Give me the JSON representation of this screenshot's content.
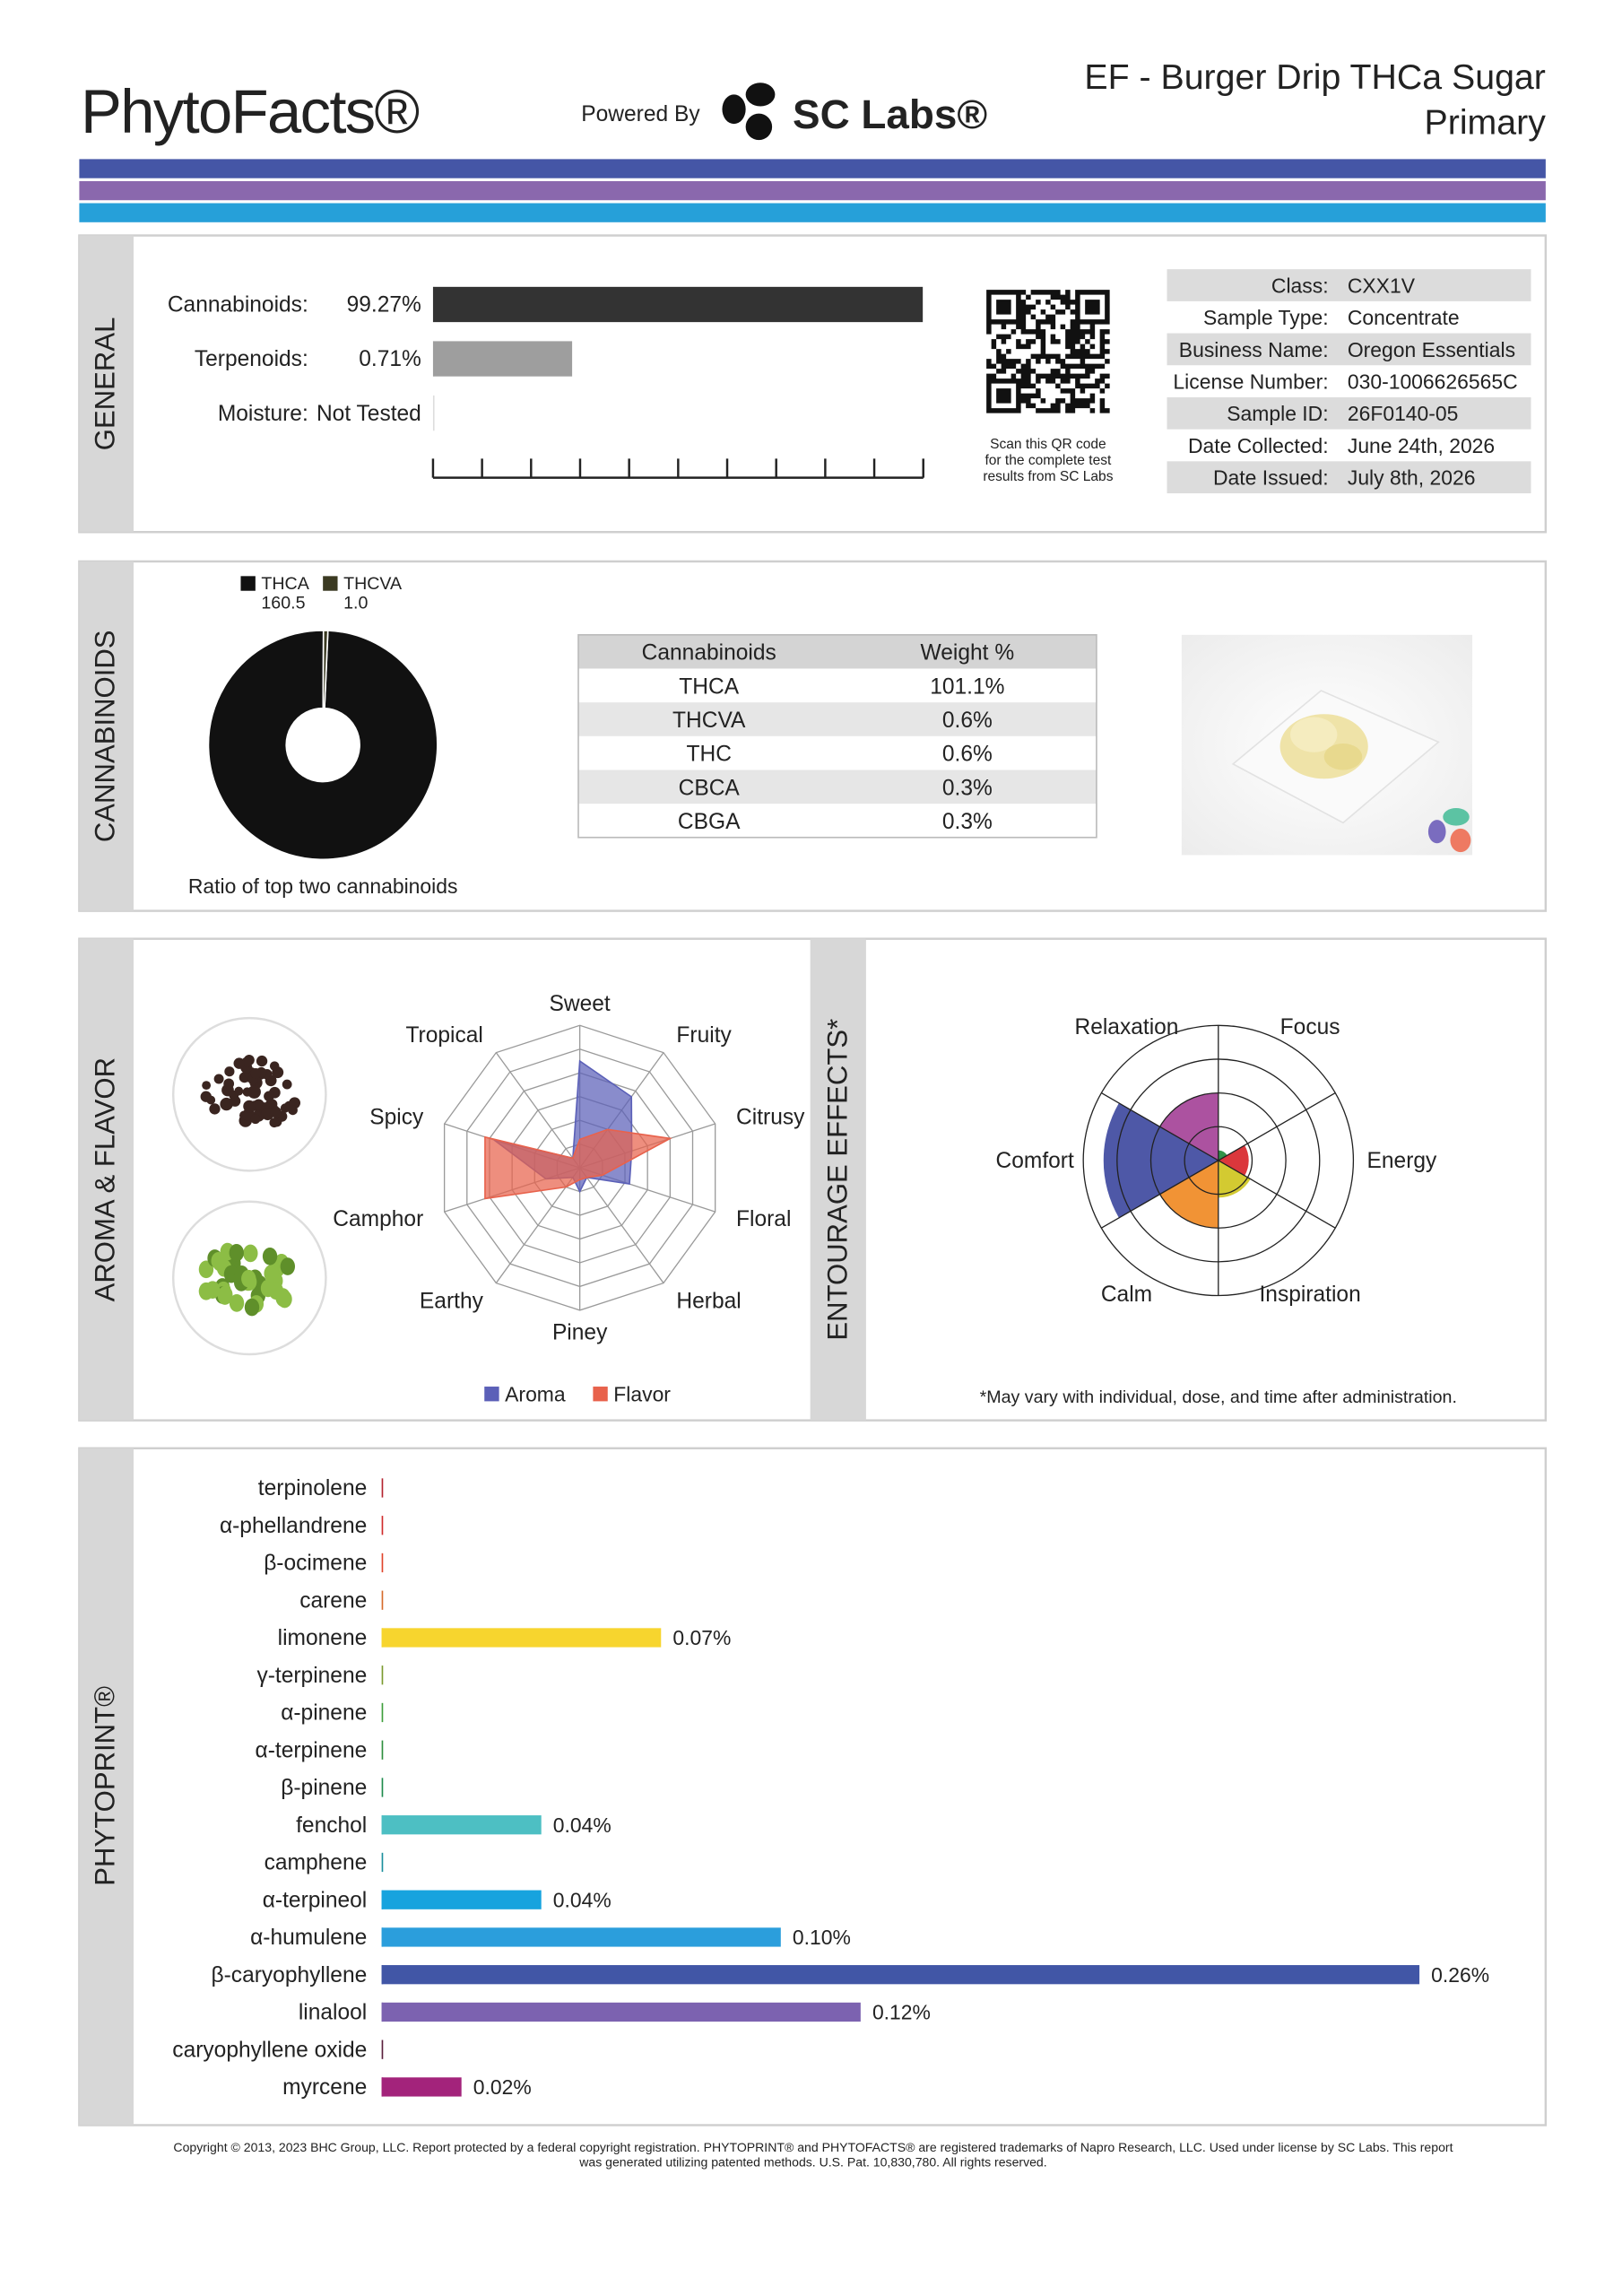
{
  "header": {
    "brand": "PhytoFacts®",
    "powered_by": "Powered By",
    "lab": "SC Labs®",
    "title": "EF - Burger Drip THCa Sugar",
    "subtitle": "Primary"
  },
  "general": {
    "label": "GENERAL",
    "log_scale": true,
    "xlim": [
      0.1,
      100
    ],
    "bars": [
      {
        "name": "Cannabinoids:",
        "value": 99.27,
        "value_label": "99.27%",
        "color": "#333333"
      },
      {
        "name": "Terpenoids:",
        "value": 0.71,
        "value_label": "0.71%",
        "color": "#9e9e9e"
      },
      {
        "name": "Moisture:",
        "value": null,
        "value_label": "Not Tested"
      }
    ],
    "qr_caption": [
      "Scan this QR code",
      "for the complete test",
      "results from SC Labs"
    ],
    "info": [
      [
        "Class:",
        "CXX1V"
      ],
      [
        "Sample Type:",
        "Concentrate"
      ],
      [
        "Business Name:",
        "Oregon Essentials"
      ],
      [
        "License Number:",
        "030-1006626565C"
      ],
      [
        "Sample ID:",
        "26F0140-05"
      ],
      [
        "Date Collected:",
        "June 24th, 2026"
      ],
      [
        "Date Issued:",
        "July 8th, 2026"
      ]
    ]
  },
  "cannabinoids": {
    "label": "CANNABINOIDS",
    "pie": {
      "type": "pie",
      "series": [
        {
          "name": "THCA",
          "value": 160.5,
          "color": "#111111"
        },
        {
          "name": "THCVA",
          "value": 1.0,
          "value_label": "1.0",
          "color": "#3b3a22"
        }
      ],
      "caption": "Ratio of top two cannabinoids"
    },
    "table": {
      "header": [
        "Cannabinoids",
        "Weight %"
      ],
      "rows": [
        [
          "THCA",
          "101.1%"
        ],
        [
          "THCVA",
          "0.6%"
        ],
        [
          "THC",
          "0.6%"
        ],
        [
          "CBCA",
          "0.3%"
        ],
        [
          "CBGA",
          "0.3%"
        ]
      ]
    }
  },
  "aroma_flavor": {
    "label": "AROMA & FLAVOR",
    "radar": {
      "type": "radar",
      "axes": [
        "Sweet",
        "Fruity",
        "Citrusy",
        "Floral",
        "Herbal",
        "Piney",
        "Earthy",
        "Camphor",
        "Spicy",
        "Tropical"
      ],
      "rlim": [
        0,
        6
      ],
      "rticks": [
        1,
        2,
        3,
        4,
        5,
        6
      ],
      "series": [
        {
          "name": "Aroma",
          "color": "#5b60b8",
          "values": [
            4.5,
            3.7,
            2.3,
            2.2,
            0.5,
            1,
            0.5,
            1.5,
            3.8,
            0.5
          ]
        },
        {
          "name": "Flavor",
          "color": "#e8624c",
          "values": [
            1.2,
            2,
            4,
            1,
            0.5,
            0.5,
            1,
            4.2,
            4.2,
            0.5
          ]
        }
      ]
    }
  },
  "entourage": {
    "label": "ENTOURAGE EFFECTS*",
    "type": "polar_area",
    "rlim": [
      0,
      4
    ],
    "rticks": [
      1,
      2,
      3,
      4
    ],
    "categories": [
      "Focus",
      "Energy",
      "Inspiration",
      "Calm",
      "Comfort",
      "Relaxation"
    ],
    "colors": [
      "#1f8a3a",
      "#d8262b",
      "#cfc51f",
      "#f08a24",
      "#3f4aa0",
      "#a54398"
    ],
    "values": [
      0.3,
      0.9,
      1.1,
      2,
      3.4,
      2
    ],
    "note": "*May vary with individual, dose, and time after administration."
  },
  "phytoprint": {
    "label": "PHYTOPRINT®",
    "type": "bar",
    "xlim": [
      0,
      0.26
    ],
    "categories": [
      "terpinolene",
      "α-phellandrene",
      "β-ocimene",
      "carene",
      "limonene",
      "γ-terpinene",
      "α-pinene",
      "α-terpinene",
      "β-pinene",
      "fenchol",
      "camphene",
      "α-terpineol",
      "α-humulene",
      "β-caryophyllene",
      "linalool",
      "caryophyllene oxide",
      "myrcene"
    ],
    "values": [
      0,
      0,
      0,
      0,
      0.07,
      0,
      0,
      0,
      0,
      0.04,
      0,
      0.04,
      0.1,
      0.26,
      0.12,
      0,
      0.02
    ],
    "value_labels": [
      null,
      null,
      null,
      null,
      "0.07%",
      null,
      null,
      null,
      null,
      "0.04%",
      null,
      "0.04%",
      "0.10%",
      "0.26%",
      "0.12%",
      null,
      "0.02%"
    ],
    "colors": [
      "#b3232e",
      "#cf2a2a",
      "#e0432a",
      "#d66a2a",
      "#f7d52e",
      "#7a9a2e",
      "#3e9e3a",
      "#2e8f3e",
      "#1d8a4c",
      "#4dbfc3",
      "#1a8f9d",
      "#17a3de",
      "#2b9edc",
      "#4156a6",
      "#7c62b0",
      "#5a1e3c",
      "#a3237b"
    ],
    "label_colors": [
      "#b3232e",
      "#cf2a2a",
      "#e0432a",
      "#d66a2a",
      "#8c6d1c",
      "#6d8c2a",
      "#3e9e3a",
      "#2e8f3e",
      "#1d8a4c",
      "#1e9ea3",
      "#1a8f9d",
      "#1790c8",
      "#1e8dcb",
      "#3d4fa0",
      "#6a54a0",
      "#5a1e3c",
      "#9a1e6a"
    ]
  },
  "footer": {
    "lines": [
      "Copyright © 2013, 2023 BHC Group, LLC. Report protected by a federal copyright registration. PHYTOPRINT® and PHYTOFACTS® are registered trademarks of Napro Research, LLC. Used under license by SC Labs. This report",
      "was generated utilizing patented methods. U.S. Pat. 10,830,780. All rights reserved."
    ]
  }
}
